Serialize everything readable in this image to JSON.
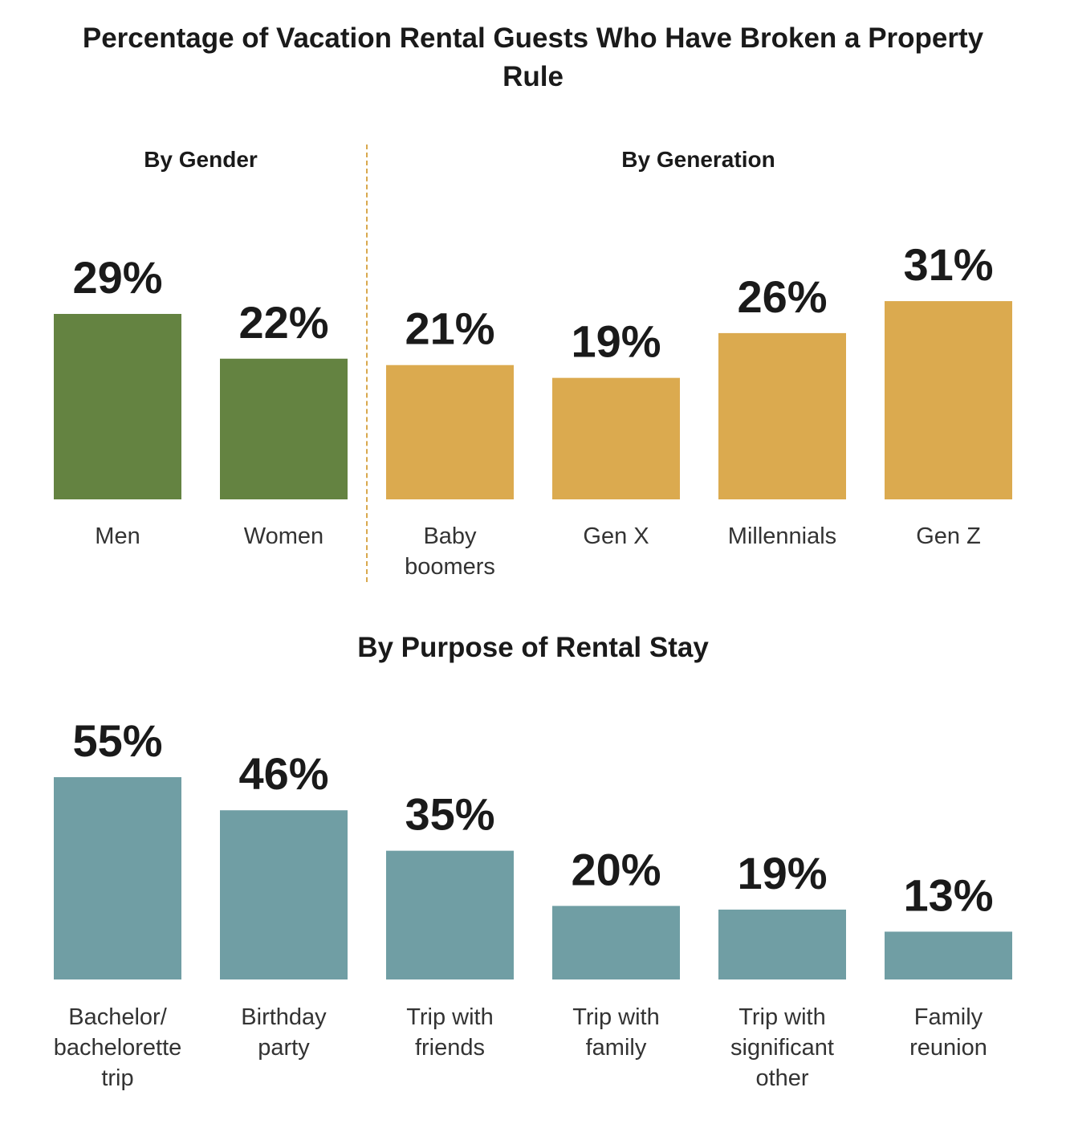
{
  "title": "Percentage of Vacation Rental Guests Who Have Broken a Property Rule",
  "colors": {
    "gender": "#648341",
    "generation": "#dbaa4f",
    "purpose": "#709ea4",
    "divider": "#d9a94e"
  },
  "chart_data": [
    {
      "type": "bar",
      "title": "By Gender",
      "categories": [
        "Men",
        "Women"
      ],
      "category_lines": [
        [
          "Men"
        ],
        [
          "Women"
        ]
      ],
      "values": [
        29,
        22
      ],
      "value_labels": [
        "29%",
        "22%"
      ],
      "unit": "%"
    },
    {
      "type": "bar",
      "title": "By Generation",
      "categories": [
        "Baby boomers",
        "Gen X",
        "Millennials",
        "Gen Z"
      ],
      "category_lines": [
        [
          "Baby",
          "boomers"
        ],
        [
          "Gen X"
        ],
        [
          "Millennials"
        ],
        [
          "Gen Z"
        ]
      ],
      "values": [
        21,
        19,
        26,
        31
      ],
      "value_labels": [
        "21%",
        "19%",
        "26%",
        "31%"
      ],
      "unit": "%"
    },
    {
      "type": "bar",
      "title": "By Purpose of Rental Stay",
      "categories": [
        "Bachelor/ bachelorette trip",
        "Birthday party",
        "Trip with friends",
        "Trip with family",
        "Trip with significant other",
        "Family reunion"
      ],
      "category_lines": [
        [
          "Bachelor/",
          "bachelorette",
          "trip"
        ],
        [
          "Birthday",
          "party"
        ],
        [
          "Trip with",
          "friends"
        ],
        [
          "Trip with",
          "family"
        ],
        [
          "Trip with",
          "significant",
          "other"
        ],
        [
          "Family",
          "reunion"
        ]
      ],
      "values": [
        55,
        46,
        35,
        20,
        19,
        13
      ],
      "value_labels": [
        "55%",
        "46%",
        "35%",
        "20%",
        "19%",
        "13%"
      ],
      "unit": "%"
    }
  ]
}
